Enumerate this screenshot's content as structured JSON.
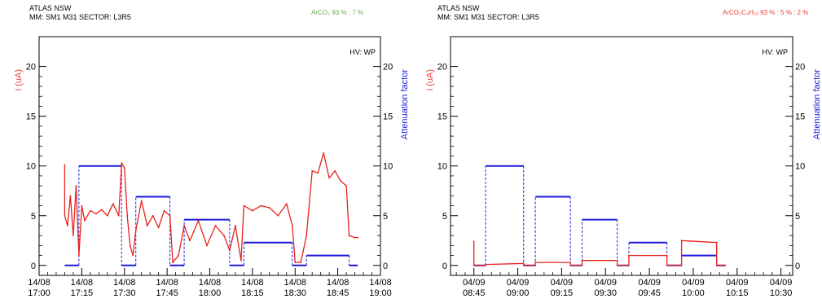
{
  "chart_data": [
    {
      "type": "line",
      "header": {
        "experiment": "ATLAS NSW",
        "detector": "MM: SM1 M31 SECTOR: L3R5",
        "gas": "ArCO₂ 93 % : 7 %",
        "gas_color": "#6aa84f"
      },
      "hv_label": "HV: WP",
      "ylabel_left": "i (uA)",
      "ylabel_right": "Attenuation factor",
      "xlim": [
        "17:00",
        "19:00"
      ],
      "ylim": [
        -1,
        23
      ],
      "x_ticks": [
        {
          "t": "17:00",
          "date": "14/08",
          "time": "17:00"
        },
        {
          "t": "17:15",
          "date": "14/08",
          "time": "17:15"
        },
        {
          "t": "17:30",
          "date": "14/08",
          "time": "17:30"
        },
        {
          "t": "17:45",
          "date": "14/08",
          "time": "17:45"
        },
        {
          "t": "18:00",
          "date": "14/08",
          "time": "18:00"
        },
        {
          "t": "18:15",
          "date": "14/08",
          "time": "18:15"
        },
        {
          "t": "18:30",
          "date": "14/08",
          "time": "18:30"
        },
        {
          "t": "18:45",
          "date": "14/08",
          "time": "18:45"
        },
        {
          "t": "19:00",
          "date": "14/08",
          "time": "19:00"
        }
      ],
      "y_ticks": [
        "0",
        "5",
        "10",
        "15",
        "20"
      ],
      "attenuation_steps": [
        {
          "start": "17:09",
          "end": "17:14",
          "value": 0
        },
        {
          "start": "17:14",
          "end": "17:29",
          "value": 10
        },
        {
          "start": "17:29",
          "end": "17:34",
          "value": 0
        },
        {
          "start": "17:34",
          "end": "17:46",
          "value": 6.9
        },
        {
          "start": "17:46",
          "end": "17:51",
          "value": 0
        },
        {
          "start": "17:51",
          "end": "18:07",
          "value": 4.6
        },
        {
          "start": "18:07",
          "end": "18:12",
          "value": 0
        },
        {
          "start": "18:12",
          "end": "18:29",
          "value": 2.3
        },
        {
          "start": "18:29",
          "end": "18:34",
          "value": 0
        },
        {
          "start": "18:34",
          "end": "18:49",
          "value": 1
        },
        {
          "start": "18:49",
          "end": "18:52",
          "value": 0
        }
      ],
      "current": [
        [
          "17:09",
          10.1
        ],
        [
          "17:09",
          5.0
        ],
        [
          "17:10",
          4.0
        ],
        [
          "17:11",
          7.0
        ],
        [
          "17:12",
          3.0
        ],
        [
          "17:13",
          8.0
        ],
        [
          "17:14",
          1.0
        ],
        [
          "17:15",
          6.0
        ],
        [
          "17:16",
          4.5
        ],
        [
          "17:18",
          5.5
        ],
        [
          "17:20",
          5.2
        ],
        [
          "17:22",
          5.6
        ],
        [
          "17:24",
          5.0
        ],
        [
          "17:26",
          6.2
        ],
        [
          "17:28",
          5.0
        ],
        [
          "17:29",
          10.3
        ],
        [
          "17:30",
          9.8
        ],
        [
          "17:31",
          5.0
        ],
        [
          "17:32",
          2.0
        ],
        [
          "17:33",
          1.0
        ],
        [
          "17:34",
          3.5
        ],
        [
          "17:36",
          6.5
        ],
        [
          "17:38",
          4.0
        ],
        [
          "17:40",
          5.0
        ],
        [
          "17:42",
          3.8
        ],
        [
          "17:44",
          5.5
        ],
        [
          "17:46",
          5.0
        ],
        [
          "17:47",
          0.3
        ],
        [
          "17:49",
          1.0
        ],
        [
          "17:51",
          4.0
        ],
        [
          "17:53",
          2.5
        ],
        [
          "17:56",
          4.5
        ],
        [
          "17:59",
          2.0
        ],
        [
          "18:02",
          4.0
        ],
        [
          "18:05",
          3.0
        ],
        [
          "18:07",
          1.5
        ],
        [
          "18:09",
          4.0
        ],
        [
          "18:11",
          0.5
        ],
        [
          "18:12",
          6.0
        ],
        [
          "18:15",
          5.5
        ],
        [
          "18:18",
          6.0
        ],
        [
          "18:21",
          5.8
        ],
        [
          "18:24",
          5.0
        ],
        [
          "18:27",
          6.2
        ],
        [
          "18:29",
          4.0
        ],
        [
          "18:30",
          0.3
        ],
        [
          "18:32",
          0.3
        ],
        [
          "18:34",
          3.0
        ],
        [
          "18:36",
          9.5
        ],
        [
          "18:38",
          9.3
        ],
        [
          "18:40",
          11.3
        ],
        [
          "18:42",
          8.8
        ],
        [
          "18:44",
          9.5
        ],
        [
          "18:46",
          8.5
        ],
        [
          "18:48",
          8.0
        ],
        [
          "18:49",
          3.0
        ],
        [
          "18:51",
          2.8
        ],
        [
          "18:52",
          2.8
        ]
      ]
    },
    {
      "type": "line",
      "header": {
        "experiment": "ATLAS NSW",
        "detector": "MM: SM1 M31 SECTOR: L3R5",
        "gas": "ArCO₂C₄H₁₀ 93 % : 5 % : 2 %",
        "gas_color": "#e8413b"
      },
      "hv_label": "HV: WP",
      "ylabel_left": "i (uA)",
      "ylabel_right": "Attenuation factor",
      "xlim": [
        "08:37",
        "10:34"
      ],
      "ylim": [
        -1,
        23
      ],
      "x_ticks": [
        {
          "t": "08:45",
          "date": "04/09",
          "time": "08:45"
        },
        {
          "t": "09:00",
          "date": "04/09",
          "time": "09:00"
        },
        {
          "t": "09:15",
          "date": "04/09",
          "time": "09:15"
        },
        {
          "t": "09:30",
          "date": "04/09",
          "time": "09:30"
        },
        {
          "t": "09:45",
          "date": "04/09",
          "time": "09:45"
        },
        {
          "t": "10:00",
          "date": "04/09",
          "time": "10:00"
        },
        {
          "t": "10:15",
          "date": "04/09",
          "time": "10:15"
        },
        {
          "t": "10:30",
          "date": "04/09",
          "time": "10:30"
        }
      ],
      "y_ticks": [
        "0",
        "5",
        "10",
        "15",
        "20"
      ],
      "attenuation_steps": [
        {
          "start": "08:45",
          "end": "08:49",
          "value": 0
        },
        {
          "start": "08:49",
          "end": "09:02",
          "value": 10
        },
        {
          "start": "09:02",
          "end": "09:06",
          "value": 0
        },
        {
          "start": "09:06",
          "end": "09:18",
          "value": 6.9
        },
        {
          "start": "09:18",
          "end": "09:22",
          "value": 0
        },
        {
          "start": "09:22",
          "end": "09:34",
          "value": 4.6
        },
        {
          "start": "09:34",
          "end": "09:38",
          "value": 0
        },
        {
          "start": "09:38",
          "end": "09:51",
          "value": 2.3
        },
        {
          "start": "09:51",
          "end": "09:56",
          "value": 0
        },
        {
          "start": "09:56",
          "end": "10:08",
          "value": 1
        },
        {
          "start": "10:08",
          "end": "10:11",
          "value": 0
        }
      ],
      "current": [
        [
          "08:45",
          2.4
        ],
        [
          "08:45",
          0.0
        ],
        [
          "08:49",
          0.0
        ],
        [
          "08:49",
          0.1
        ],
        [
          "09:02",
          0.2
        ],
        [
          "09:02",
          0.0
        ],
        [
          "09:06",
          0.0
        ],
        [
          "09:06",
          0.3
        ],
        [
          "09:18",
          0.3
        ],
        [
          "09:18",
          0.0
        ],
        [
          "09:22",
          0.0
        ],
        [
          "09:22",
          0.5
        ],
        [
          "09:34",
          0.5
        ],
        [
          "09:34",
          0.0
        ],
        [
          "09:38",
          0.0
        ],
        [
          "09:38",
          1.0
        ],
        [
          "09:51",
          1.0
        ],
        [
          "09:51",
          0.0
        ],
        [
          "09:56",
          0.0
        ],
        [
          "09:56",
          2.5
        ],
        [
          "10:08",
          2.3
        ],
        [
          "10:08",
          0.0
        ],
        [
          "10:11",
          0.0
        ]
      ]
    }
  ]
}
